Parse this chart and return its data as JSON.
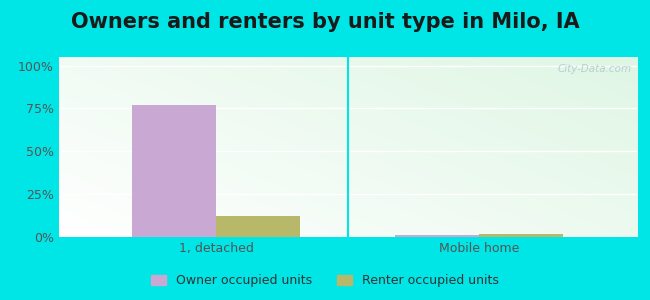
{
  "title": "Owners and renters by unit type in Milo, IA",
  "categories": [
    "1, detached",
    "Mobile home"
  ],
  "owner_values": [
    77,
    1
  ],
  "renter_values": [
    12,
    2
  ],
  "owner_color": "#c9a8d4",
  "renter_color": "#b8b86a",
  "plot_bg_top_right": "#f5fff5",
  "plot_bg_bottom_left": "#d0eedd",
  "outer_background": "#00e5e5",
  "yticks": [
    0,
    25,
    50,
    75,
    100
  ],
  "ytick_labels": [
    "0%",
    "25%",
    "50%",
    "75%",
    "100%"
  ],
  "ylim": [
    0,
    105
  ],
  "bar_width": 0.32,
  "legend_owner": "Owner occupied units",
  "legend_renter": "Renter occupied units",
  "watermark": "City-Data.com",
  "title_fontsize": 15,
  "axis_fontsize": 9,
  "legend_fontsize": 9,
  "divider_color": "#00e5e5",
  "grid_color": "#ffffff"
}
